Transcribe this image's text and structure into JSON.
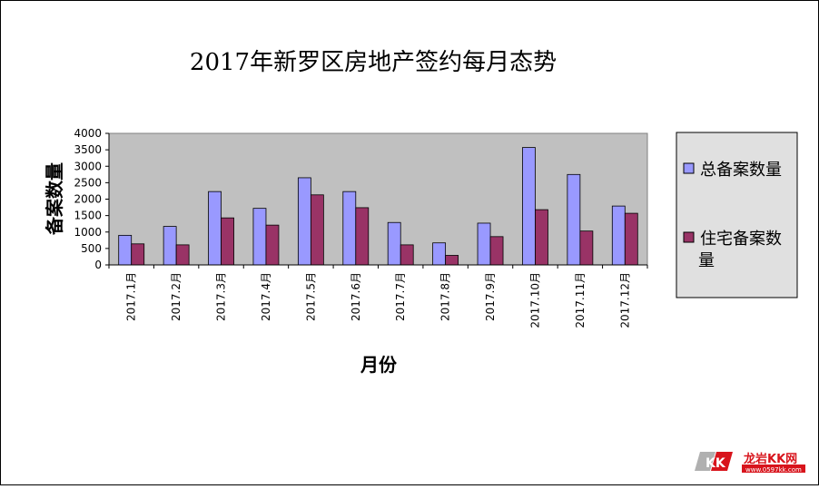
{
  "chart_data": {
    "type": "bar",
    "title": "2017年新罗区房地产签约每月态势",
    "xlabel": "月份",
    "ylabel": "备案数量",
    "categories": [
      "2017.1月",
      "2017.2月",
      "2017.3月",
      "2017.4月",
      "2017.5月",
      "2017.6月",
      "2017.7月",
      "2017.8月",
      "2017.9月",
      "2017.10月",
      "2017.11月",
      "2017.12月"
    ],
    "series": [
      {
        "name": "总备案数量",
        "color": "#9999ff",
        "values": [
          900,
          1170,
          2230,
          1720,
          2650,
          2230,
          1290,
          670,
          1270,
          3570,
          2750,
          1790
        ]
      },
      {
        "name": "住宅备案数量",
        "color": "#993366",
        "values": [
          640,
          610,
          1430,
          1210,
          2130,
          1740,
          610,
          290,
          860,
          1680,
          1030,
          1570
        ]
      }
    ],
    "ylim": [
      0,
      4000
    ],
    "yticks": [
      0,
      500,
      1000,
      1500,
      2000,
      2500,
      3000,
      3500,
      4000
    ],
    "grid": false,
    "plot_background": "#c0c0c0",
    "legend_position": "right"
  },
  "watermark": {
    "brand": "龙岩KK网",
    "url": "www.0597kk.com",
    "logo_letters": "KK"
  }
}
